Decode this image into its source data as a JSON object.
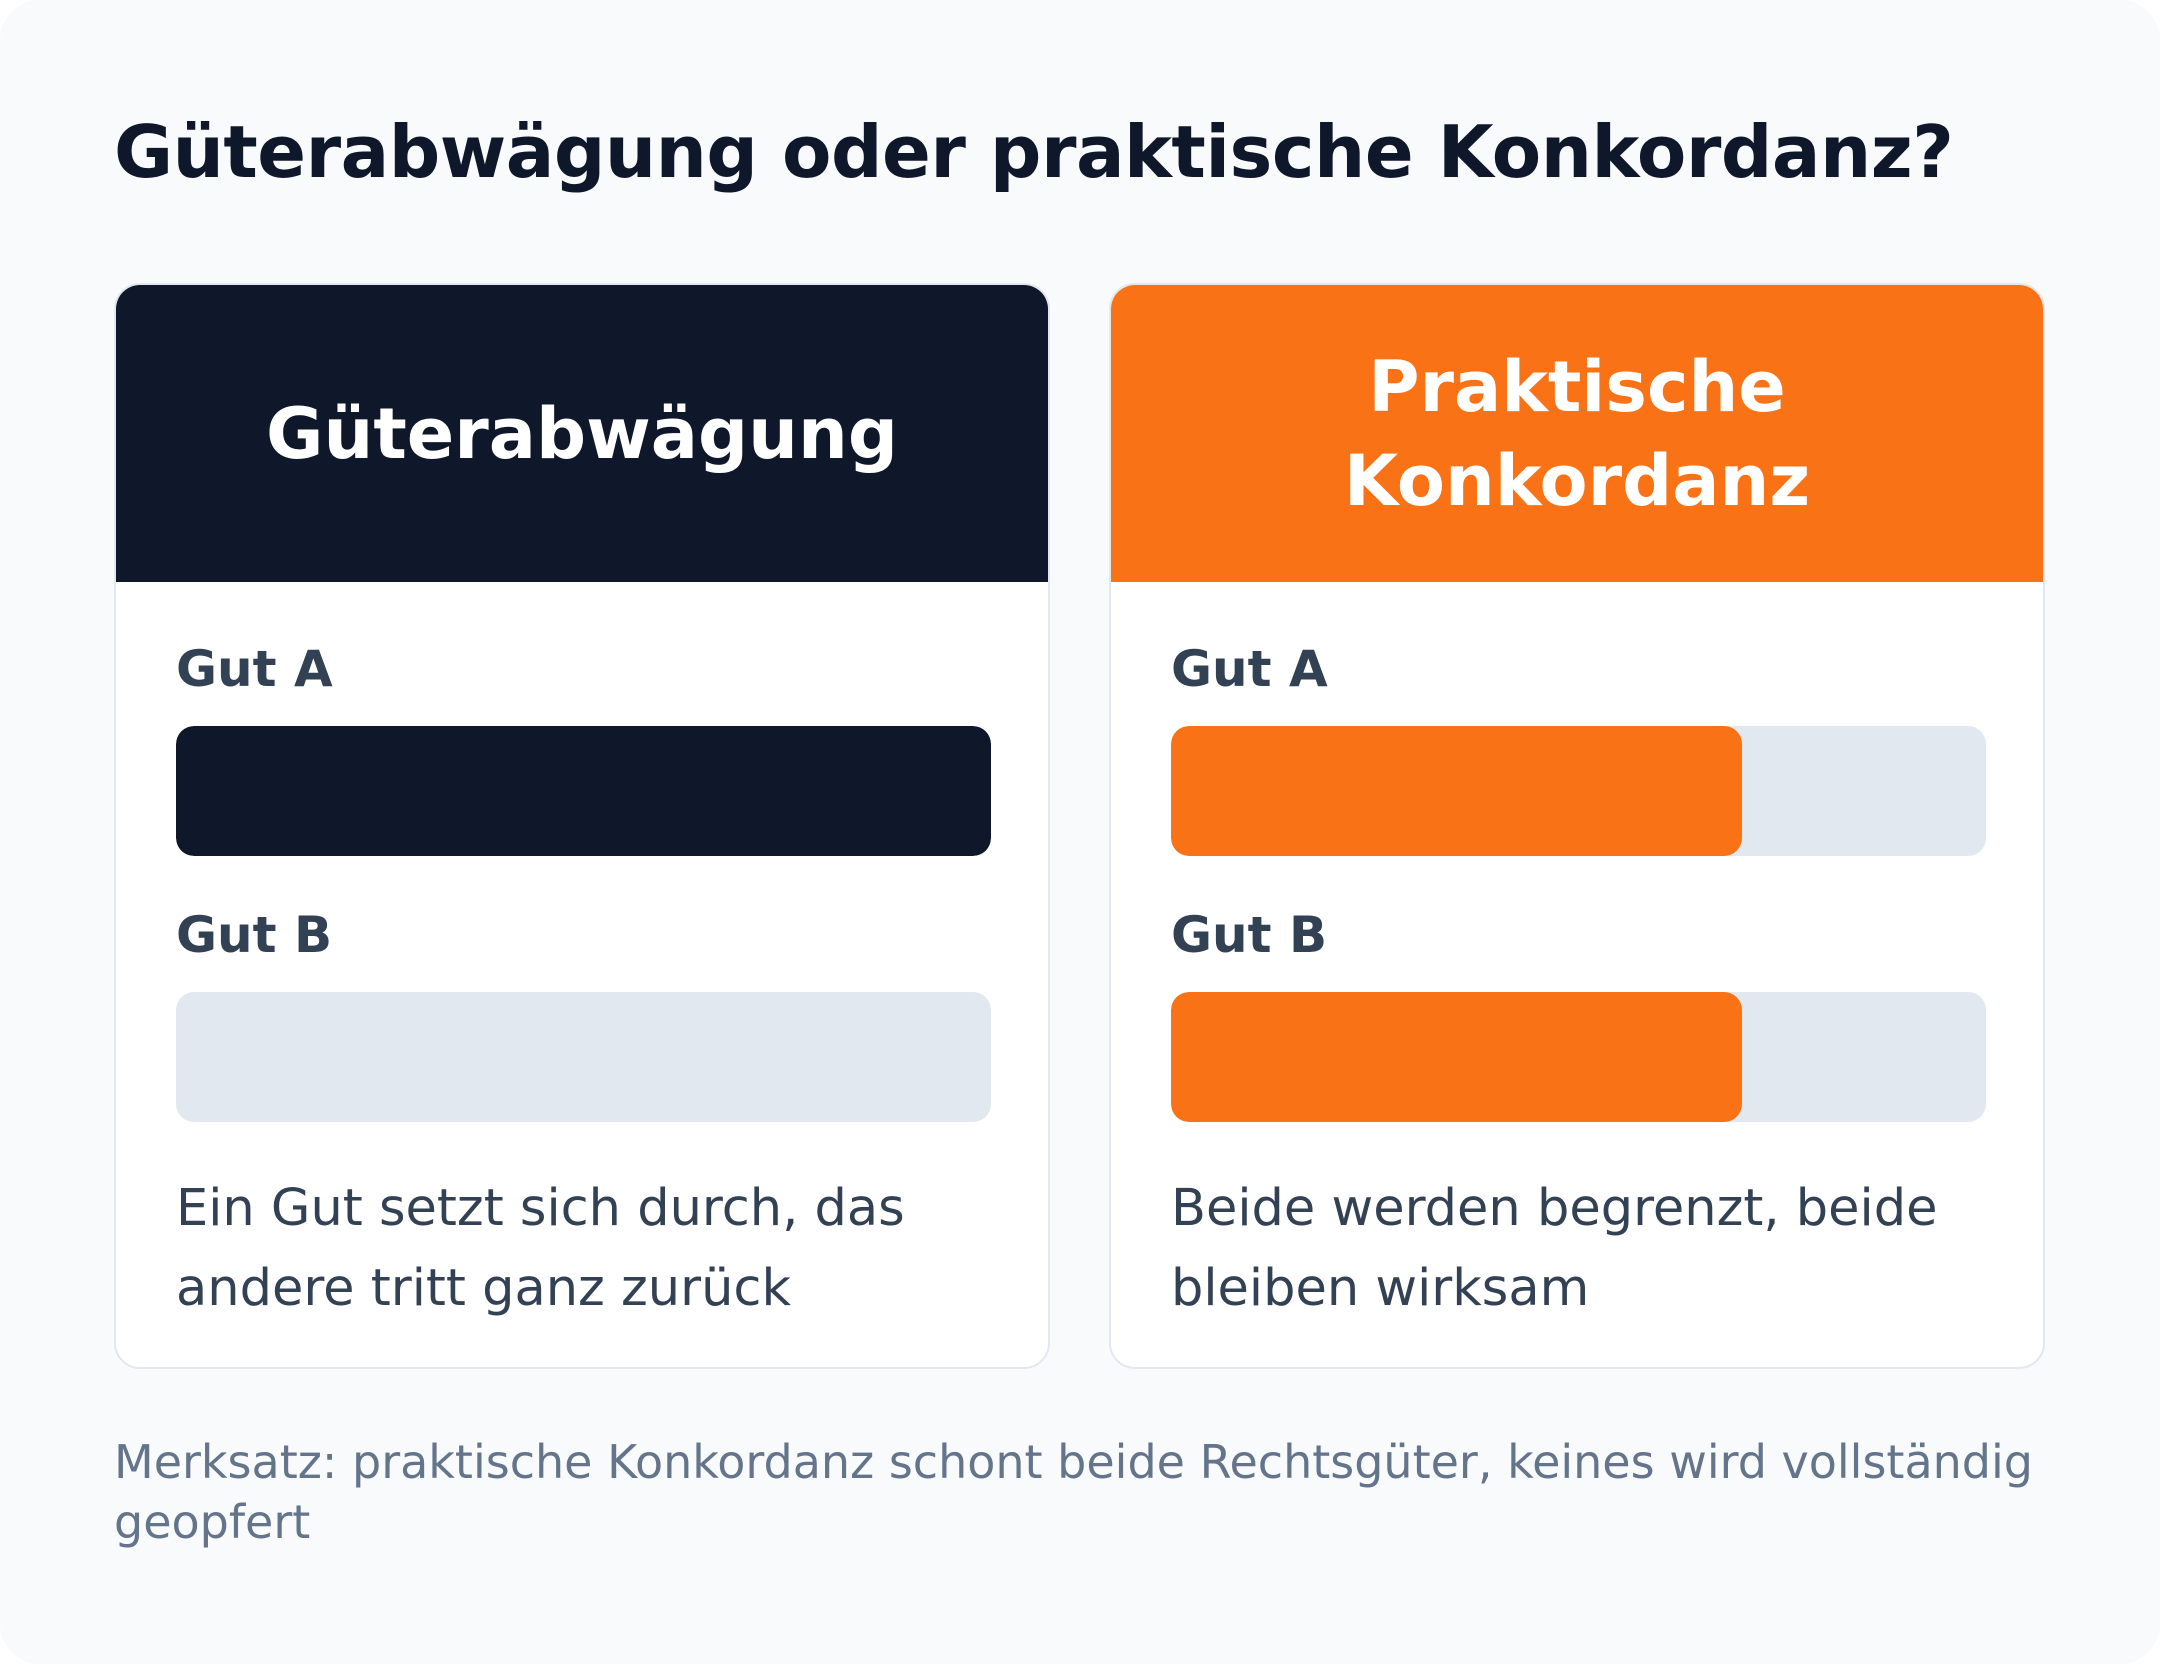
{
  "title": "Güterabwägung oder praktische Konkordanz?",
  "colors": {
    "background": "#f8fafc",
    "navy": "#0f172a",
    "orange": "#f97316",
    "track": "#e2e8f0"
  },
  "cards": [
    {
      "title": "Güterabwägung",
      "goods": [
        {
          "label": "Gut A",
          "level": 1.0
        },
        {
          "label": "Gut B",
          "level": 0.0
        }
      ],
      "description": "Ein Gut setzt sich durch, das andere tritt ganz zurück"
    },
    {
      "title": "Praktische Konkordanz",
      "goods": [
        {
          "label": "Gut A",
          "level": 0.7
        },
        {
          "label": "Gut B",
          "level": 0.7
        }
      ],
      "description": "Beide werden begrenzt, beide bleiben wirksam"
    }
  ],
  "footnote": "Merksatz: praktische Konkordanz schont beide Rechtsgüter, keines wird vollständig geopfert"
}
